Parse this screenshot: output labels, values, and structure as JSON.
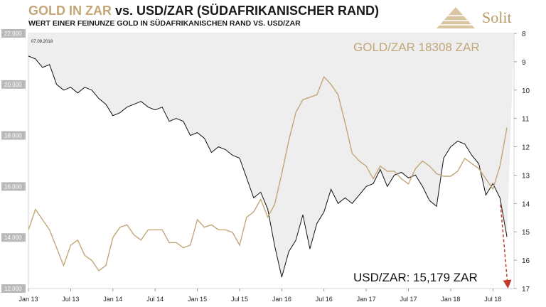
{
  "header": {
    "title_part1": "GOLD IN ZAR",
    "title_part2": " vs. USD/ZAR (SÜDAFRIKANISCHER RAND)",
    "subtitle": "WERT EINER FEINUNZE GOLD IN SÜDAFRIKANISCHEN RAND VS. USD/ZAR",
    "logo_text": "Solit"
  },
  "colors": {
    "gold": "#c2a678",
    "usdzar": "#111111",
    "shade": "#eeeeee",
    "left_tick_bg": "#b9b9b9",
    "arrow": "#c0392b"
  },
  "chart_data": {
    "type": "line",
    "date_label": "07.09.2018",
    "x_ticks": [
      "Jan 13",
      "Jul 13",
      "Jan 14",
      "Jul 14",
      "Jan 15",
      "Jul 15",
      "Jan 16",
      "Jul 16",
      "Jan 17",
      "Jul 17",
      "Jan 18",
      "Jul 18"
    ],
    "y_left": {
      "ticks": [
        "12.000",
        "14.000",
        "16.000",
        "18.000",
        "20.000",
        "22.000"
      ],
      "min": 12000,
      "max": 22000
    },
    "y_right": {
      "ticks": [
        "8",
        "9",
        "10",
        "11",
        "12",
        "13",
        "14",
        "15",
        "16",
        "17"
      ],
      "min": 8,
      "max": 17,
      "inverted": true
    },
    "series": [
      {
        "name": "GOLD/ZAR",
        "label": "GOLD/ZAR 18308 ZAR",
        "axis": "left",
        "x": [
          "2013-01",
          "2013-02",
          "2013-03",
          "2013-04",
          "2013-05",
          "2013-06",
          "2013-07",
          "2013-08",
          "2013-09",
          "2013-10",
          "2013-11",
          "2013-12",
          "2014-01",
          "2014-02",
          "2014-03",
          "2014-04",
          "2014-05",
          "2014-06",
          "2014-07",
          "2014-08",
          "2014-09",
          "2014-10",
          "2014-11",
          "2014-12",
          "2015-01",
          "2015-02",
          "2015-03",
          "2015-04",
          "2015-05",
          "2015-06",
          "2015-07",
          "2015-08",
          "2015-09",
          "2015-10",
          "2015-11",
          "2015-12",
          "2016-01",
          "2016-02",
          "2016-03",
          "2016-04",
          "2016-05",
          "2016-06",
          "2016-07",
          "2016-08",
          "2016-09",
          "2016-10",
          "2016-11",
          "2016-12",
          "2017-01",
          "2017-02",
          "2017-03",
          "2017-04",
          "2017-05",
          "2017-06",
          "2017-07",
          "2017-08",
          "2017-09",
          "2017-10",
          "2017-11",
          "2017-12",
          "2018-01",
          "2018-02",
          "2018-03",
          "2018-04",
          "2018-05",
          "2018-06",
          "2018-07",
          "2018-08",
          "2018-09"
        ],
        "values": [
          14300,
          15100,
          14700,
          14300,
          13600,
          12900,
          13700,
          13900,
          13300,
          13100,
          12700,
          12900,
          14000,
          14400,
          14500,
          14100,
          13900,
          14300,
          14300,
          14300,
          13800,
          13800,
          13600,
          13700,
          14700,
          14400,
          14500,
          14300,
          14300,
          14200,
          13700,
          14800,
          15000,
          15500,
          14800,
          15300,
          16500,
          17800,
          18900,
          19400,
          19500,
          19600,
          20300,
          20000,
          19600,
          18500,
          17300,
          17000,
          16800,
          16300,
          16800,
          16600,
          16600,
          16300,
          16100,
          16700,
          17000,
          16800,
          16500,
          16400,
          16400,
          16600,
          17100,
          16900,
          16700,
          16300,
          15900,
          16800,
          18308
        ]
      },
      {
        "name": "USD/ZAR",
        "label": "USD/ZAR: 15,179 ZAR",
        "axis": "right",
        "x": [
          "2013-01",
          "2013-02",
          "2013-03",
          "2013-04",
          "2013-05",
          "2013-06",
          "2013-07",
          "2013-08",
          "2013-09",
          "2013-10",
          "2013-11",
          "2013-12",
          "2014-01",
          "2014-02",
          "2014-03",
          "2014-04",
          "2014-05",
          "2014-06",
          "2014-07",
          "2014-08",
          "2014-09",
          "2014-10",
          "2014-11",
          "2014-12",
          "2015-01",
          "2015-02",
          "2015-03",
          "2015-04",
          "2015-05",
          "2015-06",
          "2015-07",
          "2015-08",
          "2015-09",
          "2015-10",
          "2015-11",
          "2015-12",
          "2016-01",
          "2016-02",
          "2016-03",
          "2016-04",
          "2016-05",
          "2016-06",
          "2016-07",
          "2016-08",
          "2016-09",
          "2016-10",
          "2016-11",
          "2016-12",
          "2017-01",
          "2017-02",
          "2017-03",
          "2017-04",
          "2017-05",
          "2017-06",
          "2017-07",
          "2017-08",
          "2017-09",
          "2017-10",
          "2017-11",
          "2017-12",
          "2018-01",
          "2018-02",
          "2018-03",
          "2018-04",
          "2018-05",
          "2018-06",
          "2018-07",
          "2018-08",
          "2018-09"
        ],
        "values": [
          8.8,
          8.9,
          9.2,
          9.1,
          9.8,
          10.0,
          9.9,
          10.1,
          9.9,
          10.0,
          10.3,
          10.5,
          10.9,
          10.8,
          10.6,
          10.5,
          10.4,
          10.6,
          10.7,
          10.6,
          11.1,
          11.0,
          11.1,
          11.6,
          11.5,
          11.7,
          12.2,
          12.0,
          12.1,
          12.3,
          12.4,
          13.1,
          13.8,
          13.6,
          14.2,
          15.5,
          16.6,
          15.7,
          15.3,
          14.4,
          15.6,
          14.7,
          14.3,
          13.5,
          14.0,
          13.8,
          14.0,
          13.7,
          13.4,
          13.3,
          12.8,
          13.4,
          13.0,
          12.9,
          13.1,
          13.0,
          13.4,
          13.9,
          14.1,
          12.4,
          12.0,
          11.8,
          11.9,
          12.3,
          12.6,
          13.7,
          13.3,
          13.8,
          15.179
        ]
      }
    ],
    "annotation": "USD/ZAR: 15,179 ZAR"
  }
}
